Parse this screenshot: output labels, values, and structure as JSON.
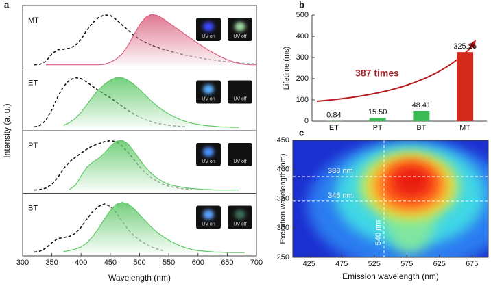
{
  "chart_data": [
    {
      "type": "spectra",
      "label": "a",
      "xlabel": "Wavelength (nm)",
      "ylabel": "Intensity (a. u.)",
      "xlim": [
        300,
        700
      ],
      "xticks": [
        300,
        350,
        400,
        450,
        500,
        550,
        600,
        650,
        700
      ],
      "ylim": [
        0,
        1.1
      ],
      "x": [
        300,
        310,
        320,
        330,
        340,
        350,
        360,
        370,
        380,
        390,
        400,
        410,
        420,
        430,
        440,
        450,
        460,
        470,
        480,
        490,
        500,
        510,
        520,
        530,
        540,
        550,
        560,
        570,
        580,
        590,
        600,
        610,
        620,
        630,
        640,
        650,
        660,
        670,
        680,
        690,
        700
      ],
      "panels": [
        {
          "name": "MT",
          "badges": [
            "UV on",
            "UV off"
          ],
          "series": [
            {
              "color": "#222222",
              "style": "dashed",
              "values": [
                null,
                null,
                0.01,
                0.02,
                0.08,
                0.22,
                0.3,
                0.31,
                0.33,
                0.38,
                0.5,
                0.68,
                0.82,
                0.92,
                0.97,
                0.96,
                0.88,
                0.78,
                0.68,
                0.58,
                0.5,
                0.44,
                0.39,
                0.35,
                0.31,
                0.28,
                0.25,
                0.22,
                0.19,
                0.17,
                0.15,
                0.13,
                0.11,
                0.1,
                0.08,
                0.07,
                0.06,
                0.05,
                0.04,
                0.03,
                0.03
              ]
            },
            {
              "color": "#d9607f",
              "style": "filled",
              "values": [
                null,
                null,
                null,
                null,
                0.01,
                0.01,
                0.01,
                0.01,
                0.01,
                0.01,
                0.01,
                0.01,
                0.01,
                0.01,
                0.02,
                0.06,
                0.12,
                0.22,
                0.38,
                0.58,
                0.78,
                0.92,
                0.98,
                0.96,
                0.9,
                0.82,
                0.74,
                0.66,
                0.58,
                0.5,
                0.42,
                0.35,
                0.28,
                0.22,
                0.16,
                0.11,
                0.07,
                0.04,
                0.02,
                0.01,
                0.01
              ]
            }
          ]
        },
        {
          "name": "ET",
          "badges": [
            "UV on",
            "UV off"
          ],
          "series": [
            {
              "color": "#222222",
              "style": "dashed",
              "values": [
                null,
                null,
                0.02,
                0.05,
                0.15,
                0.35,
                0.6,
                0.8,
                0.92,
                0.97,
                0.95,
                0.88,
                0.8,
                0.72,
                0.65,
                0.58,
                0.5,
                0.42,
                0.34,
                0.27,
                0.21,
                0.16,
                0.12,
                0.09,
                0.07,
                0.05,
                0.04,
                0.03,
                0.02,
                null,
                null,
                null,
                null,
                null,
                null,
                null,
                null,
                null,
                null,
                null,
                null
              ]
            },
            {
              "color": "#5cc765",
              "style": "filled",
              "values": [
                null,
                null,
                null,
                null,
                null,
                null,
                null,
                0.05,
                0.1,
                0.18,
                0.3,
                0.45,
                0.6,
                0.74,
                0.84,
                0.92,
                0.97,
                0.97,
                0.92,
                0.84,
                0.74,
                0.63,
                0.52,
                0.42,
                0.34,
                0.27,
                0.21,
                0.16,
                0.12,
                0.09,
                0.07,
                0.05,
                0.04,
                0.03,
                0.02,
                0.02,
                0.01,
                0.01,
                null,
                null,
                null
              ]
            }
          ]
        },
        {
          "name": "PT",
          "badges": [
            "UV on",
            "UV off"
          ],
          "series": [
            {
              "color": "#222222",
              "style": "dashed",
              "values": [
                null,
                null,
                0.01,
                0.02,
                0.05,
                0.12,
                0.25,
                0.42,
                0.55,
                0.64,
                0.72,
                0.8,
                0.86,
                0.9,
                0.94,
                0.96,
                0.94,
                0.86,
                0.74,
                0.6,
                0.46,
                0.34,
                0.25,
                0.18,
                0.12,
                0.08,
                0.06,
                0.04,
                0.03,
                0.02,
                null,
                null,
                null,
                null,
                null,
                null,
                null,
                null,
                null,
                null,
                null
              ]
            },
            {
              "color": "#5cc765",
              "style": "filled",
              "values": [
                null,
                null,
                null,
                null,
                null,
                null,
                null,
                null,
                0.02,
                0.1,
                0.28,
                0.45,
                0.55,
                0.62,
                0.72,
                0.85,
                0.95,
                0.97,
                0.9,
                0.76,
                0.6,
                0.45,
                0.33,
                0.24,
                0.17,
                0.12,
                0.09,
                0.07,
                0.05,
                0.04,
                0.03,
                0.02,
                0.02,
                0.01,
                0.01,
                0.01,
                0.01,
                0.01,
                null,
                null,
                null
              ]
            }
          ]
        },
        {
          "name": "BT",
          "badges": [
            "UV on",
            "UV off"
          ],
          "series": [
            {
              "color": "#222222",
              "style": "dashed",
              "values": [
                null,
                null,
                0.02,
                0.04,
                0.1,
                0.2,
                0.28,
                0.3,
                0.32,
                0.38,
                0.5,
                0.66,
                0.8,
                0.9,
                0.95,
                0.9,
                0.78,
                0.62,
                0.46,
                0.34,
                0.25,
                0.18,
                0.12,
                0.08,
                0.05,
                null,
                null,
                null,
                null,
                null,
                null,
                null,
                null,
                null,
                null,
                null,
                null,
                null,
                null,
                null,
                null
              ]
            },
            {
              "color": "#5cc765",
              "style": "filled",
              "values": [
                null,
                null,
                null,
                null,
                null,
                null,
                null,
                0.03,
                0.05,
                0.08,
                0.12,
                0.2,
                0.32,
                0.48,
                0.66,
                0.82,
                0.94,
                0.98,
                0.95,
                0.86,
                0.74,
                0.62,
                0.5,
                0.4,
                0.32,
                0.25,
                0.19,
                0.14,
                0.1,
                0.07,
                0.05,
                0.04,
                0.03,
                0.02,
                0.02,
                0.01,
                0.01,
                0.01,
                0.01,
                null,
                null
              ]
            }
          ]
        }
      ]
    },
    {
      "type": "bar",
      "label": "b",
      "ylabel": "Lifetime (ms)",
      "annotation": "387 times",
      "categories": [
        "ET",
        "PT",
        "BT",
        "MT"
      ],
      "values": [
        0.84,
        15.5,
        48.41,
        325.26
      ],
      "value_labels": [
        "0.84",
        "15.50",
        "48.41",
        "325.26"
      ],
      "colors": [
        "#3cba54",
        "#3cba54",
        "#3cba54",
        "#d42a1e"
      ],
      "ylim": [
        0,
        500
      ],
      "yticks": [
        0,
        100,
        200,
        300,
        400,
        500
      ]
    },
    {
      "type": "heatmap",
      "label": "c",
      "xlabel": "Emission wavelength (nm)",
      "ylabel": "Excitation wavelength (nm)",
      "xlim": [
        400,
        700
      ],
      "xticks": [
        425,
        475,
        525,
        575,
        625,
        675
      ],
      "ylim": [
        250,
        450
      ],
      "yticks": [
        250,
        300,
        350,
        400,
        450
      ],
      "annotations": [
        {
          "axis": "y",
          "value": 388,
          "label": "388 nm"
        },
        {
          "axis": "y",
          "value": 346,
          "label": "346 nm"
        },
        {
          "axis": "x",
          "value": 540,
          "label": "540 nm"
        }
      ]
    }
  ]
}
